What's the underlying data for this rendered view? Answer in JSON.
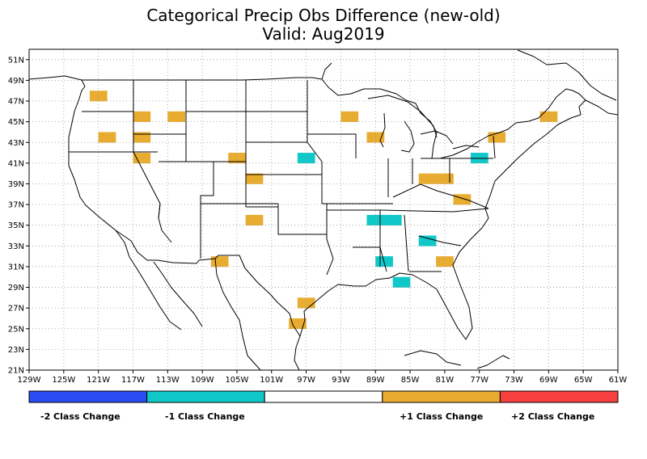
{
  "title": {
    "line1": "Categorical Precip Obs Difference (new-old)",
    "line2": "Valid: Aug2019"
  },
  "lat_labels": [
    "51N",
    "49N",
    "47N",
    "45N",
    "43N",
    "41N",
    "39N",
    "37N",
    "35N",
    "33N",
    "31N",
    "29N",
    "27N",
    "25N",
    "23N",
    "21N"
  ],
  "lon_labels": [
    "129W",
    "125W",
    "121W",
    "117W",
    "113W",
    "109W",
    "105W",
    "101W",
    "97W",
    "93W",
    "89W",
    "85W",
    "81W",
    "77W",
    "73W",
    "69W",
    "65W",
    "61W"
  ],
  "legend": {
    "items": [
      {
        "label": "-2 Class Change",
        "color": "#2a4cf0"
      },
      {
        "label": "-1 Class Change",
        "color": "#10c8c8"
      },
      {
        "label": "",
        "color": "#ffffff"
      },
      {
        "label": "+1 Class Change",
        "color": "#e8ac30"
      },
      {
        "label": "+2 Class Change",
        "color": "#f84040"
      }
    ]
  },
  "colors": {
    "plus1": "#e8ac30",
    "minus1": "#10c8c8",
    "border": "#000000",
    "grid": "#999999"
  },
  "map_data": {
    "grid": "dotted",
    "plus1_cells": [
      [
        -122,
        48
      ],
      [
        -121,
        48
      ],
      [
        -121,
        44
      ],
      [
        -120,
        44
      ],
      [
        -117,
        46
      ],
      [
        -116,
        46
      ],
      [
        -117,
        44
      ],
      [
        -116,
        44
      ],
      [
        -117,
        42
      ],
      [
        -116,
        42
      ],
      [
        -113,
        46
      ],
      [
        -112,
        46
      ],
      [
        -106,
        42
      ],
      [
        -105,
        42
      ],
      [
        -104,
        40
      ],
      [
        -103,
        40
      ],
      [
        -104,
        36
      ],
      [
        -103,
        36
      ],
      [
        -108,
        32
      ],
      [
        -107,
        32
      ],
      [
        -98,
        28
      ],
      [
        -97,
        28
      ],
      [
        -99,
        26
      ],
      [
        -98,
        26
      ],
      [
        -93,
        46
      ],
      [
        -92,
        46
      ],
      [
        -90,
        44
      ],
      [
        -89,
        44
      ],
      [
        -84,
        40
      ],
      [
        -83,
        40
      ],
      [
        -82,
        40
      ],
      [
        -81,
        40
      ],
      [
        -80,
        38
      ],
      [
        -79,
        38
      ],
      [
        -82,
        32
      ],
      [
        -81,
        32
      ],
      [
        -76,
        44
      ],
      [
        -75,
        44
      ],
      [
        -70,
        46
      ],
      [
        -69,
        46
      ]
    ],
    "minus1_cells": [
      [
        -98,
        42
      ],
      [
        -97,
        42
      ],
      [
        -90,
        36
      ],
      [
        -89,
        36
      ],
      [
        -88,
        36
      ],
      [
        -87,
        36
      ],
      [
        -84,
        34
      ],
      [
        -83,
        34
      ],
      [
        -89,
        32
      ],
      [
        -88,
        32
      ],
      [
        -87,
        30
      ],
      [
        -86,
        30
      ],
      [
        -78,
        42
      ],
      [
        -77,
        42
      ]
    ]
  }
}
